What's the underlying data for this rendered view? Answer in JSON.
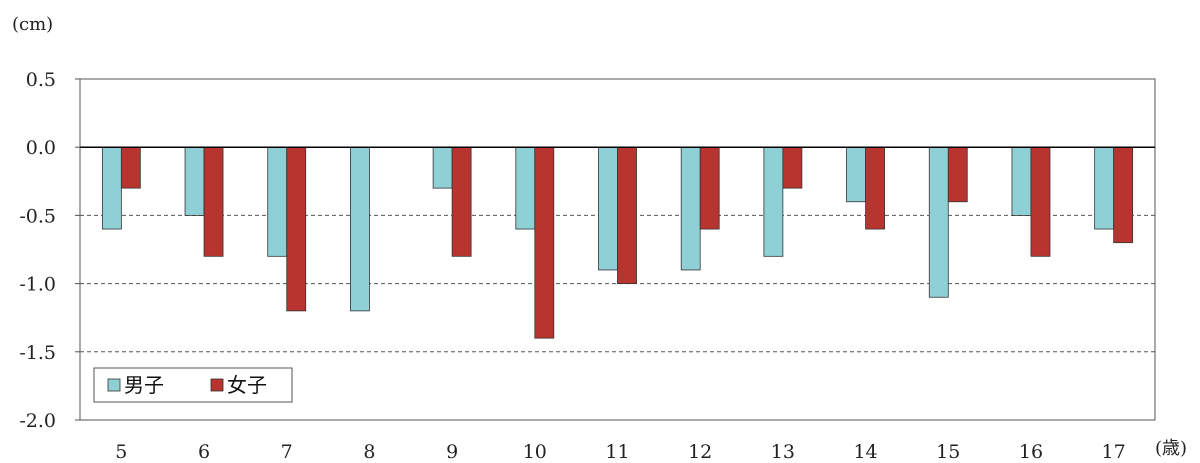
{
  "chart_data": {
    "type": "bar",
    "ylabel": "(cm)",
    "xlabel": "(歳)",
    "categories": [
      "5",
      "6",
      "7",
      "8",
      "9",
      "10",
      "11",
      "12",
      "13",
      "14",
      "15",
      "16",
      "17"
    ],
    "series": [
      {
        "name": "男子",
        "color": "#8fd0d6",
        "values": [
          -0.6,
          -0.5,
          -0.8,
          -1.2,
          -0.3,
          -0.6,
          -0.9,
          -0.9,
          -0.8,
          -0.4,
          -1.1,
          -0.5,
          -0.6
        ]
      },
      {
        "name": "女子",
        "color": "#b8342f",
        "values": [
          -0.3,
          -0.8,
          -1.2,
          null,
          -0.8,
          -1.4,
          -1.0,
          -0.6,
          -0.3,
          -0.6,
          -0.4,
          -0.8,
          -0.7
        ]
      }
    ],
    "ylim": [
      -2.0,
      0.5
    ],
    "yticks": [
      "0.5",
      "0.0",
      "-0.5",
      "-1.0",
      "-1.5",
      "-2.0"
    ],
    "gridlines": "dashed",
    "legend_position": "bottom-left"
  }
}
